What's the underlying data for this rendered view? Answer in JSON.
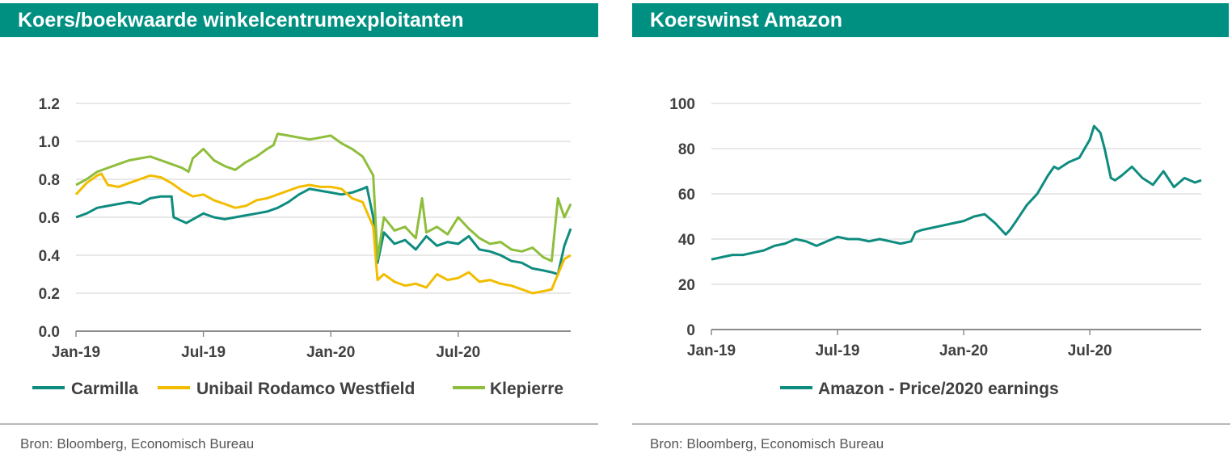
{
  "source_text": "Bron: Bloomberg, Economisch Bureau",
  "chart_data": [
    {
      "id": "left",
      "type": "line",
      "title": "Koers/boekwaarde winkelcentrumexploitanten",
      "xlabel": "",
      "ylabel": "",
      "ylim": [
        0,
        1.2
      ],
      "yticks": [
        "0.0",
        "0.2",
        "0.4",
        "0.6",
        "0.8",
        "1.0",
        "1.2"
      ],
      "xticks": [
        "Jan-19",
        "Jul-19",
        "Jan-20",
        "Jul-20"
      ],
      "xlim_months": [
        0,
        23.3
      ],
      "grid": true,
      "legend_position": "bottom",
      "series": [
        {
          "name": "Carmilla",
          "color": "#0e8c7f",
          "t": [
            0,
            0.5,
            1,
            1.5,
            2,
            2.5,
            3,
            3.5,
            4,
            4.5,
            4.6,
            5,
            5.2,
            6,
            6.5,
            7,
            7.5,
            8,
            8.5,
            9,
            9.5,
            10,
            10.5,
            11,
            11.5,
            12,
            12.5,
            13,
            13.5,
            13.7,
            14,
            14.2,
            14.5,
            15,
            15.5,
            16,
            16.5,
            17,
            17.5,
            18,
            18.5,
            19,
            19.5,
            20,
            20.5,
            21,
            21.5,
            22,
            22.4,
            22.7,
            23,
            23.3
          ],
          "values": [
            0.6,
            0.62,
            0.65,
            0.66,
            0.67,
            0.68,
            0.67,
            0.7,
            0.71,
            0.71,
            0.6,
            0.58,
            0.57,
            0.62,
            0.6,
            0.59,
            0.6,
            0.61,
            0.62,
            0.63,
            0.65,
            0.68,
            0.72,
            0.75,
            0.74,
            0.73,
            0.72,
            0.73,
            0.75,
            0.76,
            0.6,
            0.36,
            0.52,
            0.46,
            0.48,
            0.43,
            0.5,
            0.45,
            0.47,
            0.46,
            0.5,
            0.43,
            0.42,
            0.4,
            0.37,
            0.36,
            0.33,
            0.32,
            0.31,
            0.3,
            0.45,
            0.54
          ]
        },
        {
          "name": "Unibail Rodamco Westfield",
          "color": "#f2bd00",
          "t": [
            0,
            0.5,
            1,
            1.2,
            1.5,
            2,
            2.5,
            3,
            3.5,
            4,
            4.5,
            5,
            5.5,
            6,
            6.5,
            7,
            7.5,
            8,
            8.5,
            9,
            9.5,
            10,
            10.5,
            11,
            11.5,
            12,
            12.5,
            13,
            13.5,
            14,
            14.2,
            14.5,
            15,
            15.5,
            16,
            16.5,
            17,
            17.5,
            18,
            18.5,
            19,
            19.5,
            20,
            20.5,
            21,
            21.5,
            22,
            22.4,
            22.7,
            23,
            23.3
          ],
          "values": [
            0.72,
            0.78,
            0.82,
            0.83,
            0.77,
            0.76,
            0.78,
            0.8,
            0.82,
            0.81,
            0.78,
            0.74,
            0.71,
            0.72,
            0.69,
            0.67,
            0.65,
            0.66,
            0.69,
            0.7,
            0.72,
            0.74,
            0.76,
            0.77,
            0.76,
            0.76,
            0.75,
            0.7,
            0.68,
            0.55,
            0.27,
            0.3,
            0.26,
            0.24,
            0.25,
            0.23,
            0.3,
            0.27,
            0.28,
            0.31,
            0.26,
            0.27,
            0.25,
            0.24,
            0.22,
            0.2,
            0.21,
            0.22,
            0.3,
            0.38,
            0.4
          ]
        },
        {
          "name": "Klepierre",
          "color": "#8ebe3c",
          "t": [
            0,
            0.5,
            1,
            1.5,
            2,
            2.5,
            3,
            3.5,
            4,
            4.5,
            5,
            5.3,
            5.5,
            6,
            6.5,
            7,
            7.5,
            8,
            8.5,
            9,
            9.3,
            9.5,
            10,
            10.5,
            11,
            11.5,
            12,
            12.5,
            13,
            13.5,
            14,
            14.2,
            14.5,
            15,
            15.5,
            16,
            16.3,
            16.5,
            17,
            17.5,
            18,
            18.5,
            19,
            19.5,
            20,
            20.5,
            21,
            21.5,
            22,
            22.4,
            22.7,
            23,
            23.3
          ],
          "values": [
            0.77,
            0.8,
            0.84,
            0.86,
            0.88,
            0.9,
            0.91,
            0.92,
            0.9,
            0.88,
            0.86,
            0.84,
            0.91,
            0.96,
            0.9,
            0.87,
            0.85,
            0.89,
            0.92,
            0.96,
            0.98,
            1.04,
            1.03,
            1.02,
            1.01,
            1.02,
            1.03,
            0.99,
            0.96,
            0.92,
            0.82,
            0.38,
            0.6,
            0.53,
            0.55,
            0.49,
            0.7,
            0.52,
            0.55,
            0.51,
            0.6,
            0.54,
            0.49,
            0.46,
            0.47,
            0.43,
            0.42,
            0.44,
            0.39,
            0.37,
            0.7,
            0.6,
            0.67
          ]
        }
      ]
    },
    {
      "id": "right",
      "type": "line",
      "title": "Koerswinst Amazon",
      "xlabel": "",
      "ylabel": "",
      "ylim": [
        0,
        100
      ],
      "yticks": [
        "0",
        "20",
        "40",
        "60",
        "80",
        "100"
      ],
      "xticks": [
        "Jan-19",
        "Jul-19",
        "Jan-20",
        "Jul-20"
      ],
      "xlim_months": [
        0,
        23.3
      ],
      "grid": true,
      "legend_position": "bottom",
      "series": [
        {
          "name": "Amazon - Price/2020 earnings",
          "color": "#0e8c7f",
          "t": [
            0,
            0.5,
            1,
            1.5,
            2,
            2.5,
            3,
            3.5,
            4,
            4.5,
            5,
            5.5,
            6,
            6.5,
            7,
            7.5,
            8,
            8.5,
            9,
            9.5,
            9.7,
            10,
            10.5,
            11,
            11.5,
            12,
            12.5,
            13,
            13.5,
            14,
            14.2,
            14.5,
            15,
            15.5,
            16,
            16.3,
            16.5,
            17,
            17.5,
            18,
            18.2,
            18.5,
            18.7,
            19,
            19.2,
            19.5,
            20,
            20.5,
            21,
            21.5,
            22,
            22.5,
            23,
            23.3
          ],
          "values": [
            31,
            32,
            33,
            33,
            34,
            35,
            37,
            38,
            40,
            39,
            37,
            39,
            41,
            40,
            40,
            39,
            40,
            39,
            38,
            39,
            43,
            44,
            45,
            46,
            47,
            48,
            50,
            51,
            47,
            42,
            44,
            48,
            55,
            60,
            68,
            72,
            71,
            74,
            76,
            84,
            90,
            87,
            80,
            67,
            66,
            68,
            72,
            67,
            64,
            70,
            63,
            67,
            65,
            66
          ]
        }
      ]
    }
  ]
}
